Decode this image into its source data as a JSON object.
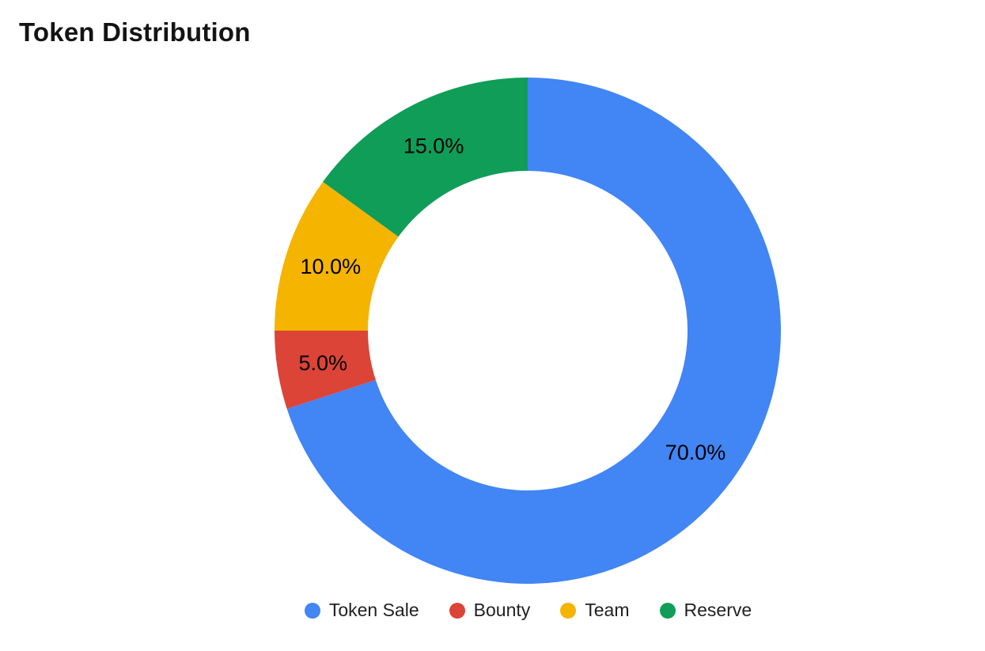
{
  "chart_data": {
    "type": "pie",
    "variant": "donut",
    "title": "Token Distribution",
    "labels": [
      "Token Sale",
      "Bounty",
      "Team",
      "Reserve"
    ],
    "values": [
      70.0,
      5.0,
      10.0,
      15.0
    ],
    "slice_labels": [
      "70.0%",
      "5.0%",
      "10.0%",
      "15.0%"
    ],
    "colors": [
      "#4285F4",
      "#DB4437",
      "#F4B400",
      "#0F9D58"
    ],
    "start_angle_deg": 0,
    "direction": "clockwise",
    "inner_radius_ratio": 0.63,
    "legend_position": "bottom",
    "label_color": "#000000",
    "background_color": "#ffffff"
  }
}
